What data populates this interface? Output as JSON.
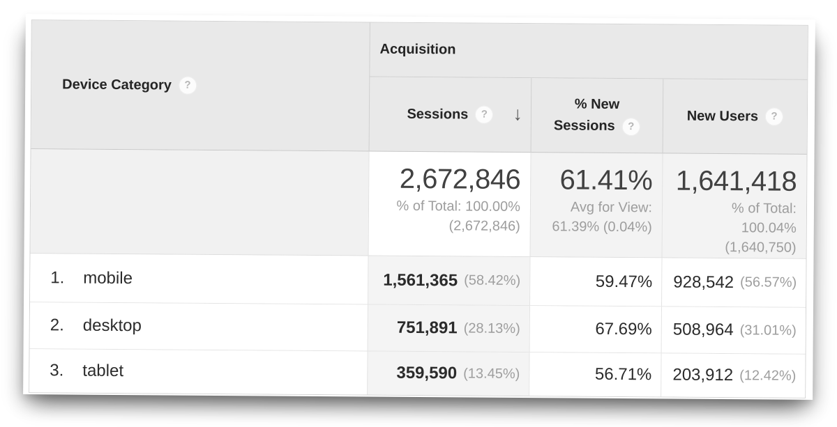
{
  "table": {
    "dimension_header": {
      "label": "Device Category"
    },
    "group_header": {
      "label": "Acquisition"
    },
    "metric_headers": {
      "sessions": {
        "label": "Sessions",
        "sorted": "descending"
      },
      "new_sessions": {
        "label": "% New\nSessions"
      },
      "new_users": {
        "label": "New Users"
      }
    },
    "summary": {
      "sessions": {
        "value": "2,672,846",
        "note": "% of Total: 100.00%\n(2,672,846)"
      },
      "new_sessions": {
        "value": "61.41%",
        "note": "Avg for View:\n61.39% (0.04%)"
      },
      "new_users": {
        "value": "1,641,418",
        "note": "% of Total:\n100.04%\n(1,640,750)"
      }
    },
    "rows": [
      {
        "index": "1.",
        "device": "mobile",
        "sessions": "1,561,365",
        "sessions_pct": "(58.42%)",
        "new_sessions": "59.47%",
        "new_users": "928,542",
        "new_users_pct": "(56.57%)"
      },
      {
        "index": "2.",
        "device": "desktop",
        "sessions": "751,891",
        "sessions_pct": "(28.13%)",
        "new_sessions": "67.69%",
        "new_users": "508,964",
        "new_users_pct": "(31.01%)"
      },
      {
        "index": "3.",
        "device": "tablet",
        "sessions": "359,590",
        "sessions_pct": "(13.45%)",
        "new_sessions": "56.71%",
        "new_users": "203,912",
        "new_users_pct": "(12.42%)"
      }
    ]
  },
  "icons": {
    "help": "?",
    "sort_desc": "↓"
  },
  "colors": {
    "header_bg": "#e9e9e9",
    "sorted_column_bg": "#f4f4f4",
    "summary_bg": "#f3f3f3",
    "text_primary": "#2b2b2b",
    "text_muted": "#9d9d9d"
  }
}
